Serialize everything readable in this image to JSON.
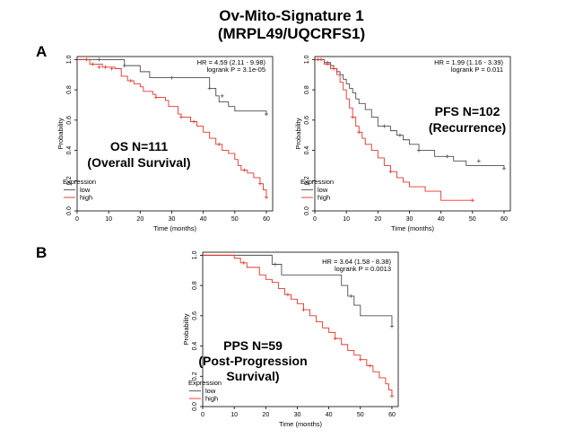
{
  "figure": {
    "title_line1": "Ov-Mito-Signature 1",
    "title_line2": "(MRPL49/UQCRFS1)",
    "panel_a_label": "A",
    "panel_b_label": "B"
  },
  "chart_data": [
    {
      "type": "line",
      "id": "os",
      "title": "",
      "xlabel": "Time (months)",
      "ylabel": "Probability",
      "xlim": [
        0,
        62
      ],
      "ylim": [
        0,
        1.02
      ],
      "xticks": [
        0,
        10,
        20,
        30,
        40,
        50,
        60
      ],
      "yticks": [
        0.0,
        0.2,
        0.4,
        0.6,
        0.8,
        1.0
      ],
      "ytick_labels": [
        "0.0",
        "0.2",
        "0.4",
        "0.6",
        "0.8",
        "1.0"
      ],
      "hr_text": "HR = 4.59 (2.11 - 9.98)",
      "p_text": "logrank P = 3.1e-05",
      "label_lines": [
        "OS N=111",
        "(Overall Survival)"
      ],
      "legend_title": "Expression",
      "series": [
        {
          "name": "low",
          "color": "#4d4d4d",
          "x": [
            0,
            15,
            20,
            23,
            42,
            44,
            45,
            48,
            50,
            60
          ],
          "y": [
            1.0,
            0.96,
            0.92,
            0.88,
            0.81,
            0.76,
            0.72,
            0.69,
            0.66,
            0.64
          ],
          "censor_x": [
            7,
            15,
            30,
            42,
            46,
            60
          ],
          "censor_y": [
            1.0,
            0.96,
            0.88,
            0.81,
            0.76,
            0.64
          ]
        },
        {
          "name": "high",
          "color": "#e8322a",
          "x": [
            0,
            4,
            8,
            12,
            14,
            16,
            18,
            20,
            21,
            24,
            25,
            28,
            29,
            32,
            33,
            36,
            38,
            40,
            42,
            44,
            46,
            48,
            50,
            51,
            52,
            54,
            56,
            58,
            59,
            60
          ],
          "y": [
            1.0,
            0.97,
            0.95,
            0.94,
            0.89,
            0.86,
            0.84,
            0.82,
            0.79,
            0.77,
            0.75,
            0.73,
            0.69,
            0.64,
            0.62,
            0.59,
            0.56,
            0.52,
            0.48,
            0.44,
            0.4,
            0.38,
            0.34,
            0.3,
            0.27,
            0.25,
            0.22,
            0.18,
            0.14,
            0.09
          ],
          "censor_x": [
            3,
            5,
            7,
            9,
            11,
            17,
            25,
            33,
            37,
            45,
            53,
            58,
            60
          ],
          "censor_y": [
            1.0,
            0.97,
            0.95,
            0.95,
            0.94,
            0.86,
            0.75,
            0.62,
            0.59,
            0.44,
            0.27,
            0.18,
            0.09
          ]
        }
      ]
    },
    {
      "type": "line",
      "id": "pfs",
      "title": "",
      "xlabel": "Time (months)",
      "ylabel": "Probability",
      "xlim": [
        0,
        62
      ],
      "ylim": [
        0,
        1.02
      ],
      "xticks": [
        0,
        10,
        20,
        30,
        40,
        50,
        60
      ],
      "yticks": [
        0.0,
        0.2,
        0.4,
        0.6,
        0.8,
        1.0
      ],
      "ytick_labels": [
        "0.0",
        "0.2",
        "0.4",
        "0.6",
        "0.8",
        "1.0"
      ],
      "hr_text": "HR = 1.99 (1.16 - 3.39)",
      "p_text": "logrank P = 0.011",
      "label_lines": [
        "PFS N=102",
        "(Recurrence)"
      ],
      "legend_title": "Expression",
      "series": [
        {
          "name": "low",
          "color": "#4d4d4d",
          "x": [
            0,
            3,
            5,
            6,
            7,
            8,
            9,
            10,
            11,
            12,
            13,
            14,
            16,
            18,
            20,
            24,
            26,
            28,
            30,
            33,
            38,
            44,
            48,
            60
          ],
          "y": [
            1.0,
            0.98,
            0.96,
            0.94,
            0.92,
            0.9,
            0.87,
            0.84,
            0.81,
            0.78,
            0.74,
            0.71,
            0.67,
            0.62,
            0.56,
            0.53,
            0.5,
            0.47,
            0.44,
            0.4,
            0.36,
            0.33,
            0.3,
            0.28
          ],
          "censor_x": [
            4,
            22,
            27,
            33,
            42,
            52,
            60
          ],
          "censor_y": [
            0.98,
            0.56,
            0.5,
            0.4,
            0.36,
            0.33,
            0.28
          ]
        },
        {
          "name": "high",
          "color": "#e8322a",
          "x": [
            0,
            3,
            5,
            7,
            8,
            9,
            10,
            11,
            12,
            13,
            14,
            15,
            16,
            18,
            20,
            22,
            24,
            26,
            28,
            30,
            35,
            40,
            50
          ],
          "y": [
            1.0,
            0.97,
            0.94,
            0.9,
            0.85,
            0.8,
            0.74,
            0.68,
            0.62,
            0.56,
            0.52,
            0.48,
            0.44,
            0.4,
            0.35,
            0.3,
            0.26,
            0.22,
            0.19,
            0.16,
            0.13,
            0.07,
            0.07
          ],
          "censor_x": [
            1,
            2,
            4,
            6,
            12,
            14,
            24,
            50
          ],
          "censor_y": [
            1.0,
            1.0,
            0.97,
            0.94,
            0.62,
            0.52,
            0.26,
            0.07
          ]
        }
      ]
    },
    {
      "type": "line",
      "id": "pps",
      "title": "",
      "xlabel": "Time (months)",
      "ylabel": "Probability",
      "xlim": [
        0,
        62
      ],
      "ylim": [
        0,
        1.02
      ],
      "xticks": [
        0,
        10,
        20,
        30,
        40,
        50,
        60
      ],
      "yticks": [
        0.0,
        0.2,
        0.4,
        0.6,
        0.8,
        1.0
      ],
      "ytick_labels": [
        "0.0",
        "0.2",
        "0.4",
        "0.6",
        "0.8",
        "1.0"
      ],
      "hr_text": "HR = 3.64 (1.58 - 8.38)",
      "p_text": "logrank P = 0.0013",
      "label_lines": [
        "PPS N=59",
        "(Post-Progression",
        "Survival)"
      ],
      "legend_title": "Expression",
      "series": [
        {
          "name": "low",
          "color": "#4d4d4d",
          "x": [
            0,
            22,
            25,
            44,
            46,
            48,
            50,
            60
          ],
          "y": [
            1.0,
            0.94,
            0.87,
            0.8,
            0.73,
            0.67,
            0.6,
            0.53
          ],
          "censor_x": [
            23,
            47,
            60
          ],
          "censor_y": [
            0.94,
            0.73,
            0.53
          ]
        },
        {
          "name": "high",
          "color": "#e8322a",
          "x": [
            0,
            10,
            12,
            14,
            18,
            20,
            22,
            24,
            26,
            28,
            30,
            32,
            34,
            36,
            38,
            40,
            42,
            44,
            46,
            48,
            50,
            52,
            54,
            56,
            58,
            59,
            60
          ],
          "y": [
            1.0,
            0.98,
            0.95,
            0.92,
            0.87,
            0.84,
            0.82,
            0.78,
            0.74,
            0.71,
            0.68,
            0.64,
            0.6,
            0.56,
            0.52,
            0.49,
            0.45,
            0.41,
            0.37,
            0.34,
            0.31,
            0.27,
            0.23,
            0.19,
            0.15,
            0.11,
            0.07
          ],
          "censor_x": [
            13,
            27,
            32,
            42,
            50,
            53,
            60
          ],
          "censor_y": [
            0.95,
            0.74,
            0.64,
            0.45,
            0.31,
            0.27,
            0.07
          ]
        }
      ]
    }
  ]
}
